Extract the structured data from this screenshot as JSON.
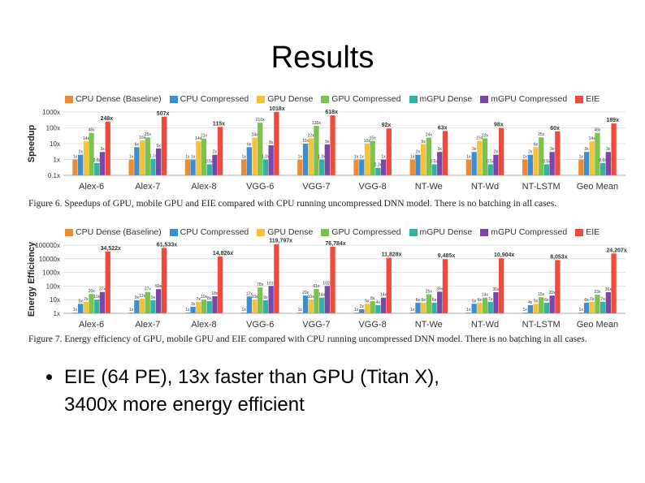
{
  "slide": {
    "title": "Results",
    "bullet": "EIE (64 PE), 13x faster than GPU (Titan X), 3400x more energy efficient",
    "bullet_line1": "EIE (64 PE), 13x faster than GPU (Titan X),",
    "bullet_line2": "3400x more energy efficient"
  },
  "legend": [
    {
      "name": "CPU Dense (Baseline)",
      "color": "#ee8b32"
    },
    {
      "name": "CPU Compressed",
      "color": "#3a8fd1"
    },
    {
      "name": "GPU Dense",
      "color": "#f5c23c"
    },
    {
      "name": "GPU Compressed",
      "color": "#7cc24f"
    },
    {
      "name": "mGPU Dense",
      "color": "#35b0a4"
    },
    {
      "name": "mGPU Compressed",
      "color": "#7b46a8"
    },
    {
      "name": "EIE",
      "color": "#ef4b3d"
    }
  ],
  "captions": {
    "fig6": "Figure 6.    Speedups of GPU, mobile GPU and EIE compared with CPU running uncompressed DNN model. There is no batching in all cases.",
    "fig7": "Figure 7.    Energy efficiency of GPU, mobile GPU and EIE compared with CPU running uncompressed DNN model. There is no batching in all cases."
  },
  "chart_data": [
    {
      "type": "bar",
      "ylabel": "Speedup",
      "yscale": "log",
      "ylim": [
        0.1,
        1000
      ],
      "yticks": [
        "1000x",
        "100x",
        "10x",
        "1x",
        "0.1x"
      ],
      "categories": [
        "Alex-6",
        "Alex-7",
        "Alex-8",
        "VGG-6",
        "VGG-7",
        "VGG-8",
        "NT-We",
        "NT-Wd",
        "NT-LSTM",
        "Geo Mean"
      ],
      "series": [
        {
          "name": "CPU Dense (Baseline)",
          "values": [
            1,
            1,
            1,
            1,
            1,
            1,
            1,
            1,
            1,
            1
          ],
          "labels": [
            "1x",
            "1x",
            "1x",
            "1x",
            "1x",
            "1x",
            "1x",
            "1x",
            "1x",
            "1x"
          ]
        },
        {
          "name": "CPU Compressed",
          "values": [
            2,
            6,
            1,
            6,
            10,
            1,
            2,
            3,
            2,
            3
          ],
          "labels": [
            "2x",
            "6x",
            "1x",
            "6x",
            "10x",
            "1x",
            "2x",
            "3x",
            "2x",
            "3x"
          ]
        },
        {
          "name": "GPU Dense",
          "values": [
            14,
            16,
            14,
            24,
            22,
            10,
            9,
            15,
            6,
            14
          ],
          "labels": [
            "14x",
            "16x",
            "14x",
            "24x",
            "22x",
            "10x",
            "9x",
            "15x",
            "6x",
            "14x"
          ]
        },
        {
          "name": "GPU Compressed",
          "values": [
            48,
            25,
            21,
            210,
            135,
            15,
            24,
            22,
            25,
            48
          ],
          "labels": [
            "48x",
            "25x",
            "21x",
            "210x",
            "135x",
            "15x",
            "24x",
            "22x",
            "25x",
            "48x"
          ]
        },
        {
          "name": "mGPU Dense",
          "values": [
            0.6,
            1.1,
            0.5,
            1.0,
            1.0,
            0.3,
            0.5,
            0.5,
            0.5,
            0.6
          ],
          "labels": [
            "0.6x",
            "1.1x",
            "0.5x",
            "1.0x",
            "1.0x",
            "0.3x",
            "0.5x",
            "0.5x",
            "0.5x",
            "0.6x"
          ]
        },
        {
          "name": "mGPU Compressed",
          "values": [
            3,
            5,
            2,
            8,
            9,
            1,
            3,
            2,
            3,
            3
          ],
          "labels": [
            "3x",
            "5x",
            "2x",
            "8x",
            "9x",
            "1x",
            "3x",
            "2x",
            "3x",
            "3x"
          ]
        },
        {
          "name": "EIE",
          "values": [
            248,
            507,
            115,
            1018,
            618,
            92,
            63,
            98,
            60,
            189
          ],
          "labels": [
            "248x",
            "507x",
            "115x",
            "1018x",
            "618x",
            "92x",
            "63x",
            "98x",
            "60x",
            "189x"
          ]
        }
      ]
    },
    {
      "type": "bar",
      "ylabel": "Energy Efficiency",
      "yscale": "log",
      "ylim": [
        1,
        100000
      ],
      "yticks": [
        "100000x",
        "10000x",
        "1000x",
        "100x",
        "10x",
        "1x"
      ],
      "categories": [
        "Alex-6",
        "Alex-7",
        "Alex-8",
        "VGG-6",
        "VGG-7",
        "VGG-8",
        "NT-We",
        "NT-Wd",
        "NT-LSTM",
        "Geo Mean"
      ],
      "series": [
        {
          "name": "CPU Dense (Baseline)",
          "values": [
            1,
            1,
            1,
            1,
            1,
            1,
            1,
            1,
            1,
            1
          ],
          "labels": [
            "1x",
            "1x",
            "1x",
            "1x",
            "1x",
            "1x",
            "1x",
            "1x",
            "1x",
            "1x"
          ]
        },
        {
          "name": "CPU Compressed",
          "values": [
            5,
            9,
            3,
            17,
            20,
            2,
            6,
            5,
            4,
            6
          ],
          "labels": [
            "5x",
            "9x",
            "3x",
            "17x",
            "20x",
            "2x",
            "6x",
            "5x",
            "4x",
            "6x"
          ]
        },
        {
          "name": "GPU Dense",
          "values": [
            7,
            12,
            7,
            10,
            10,
            5,
            6,
            6,
            5,
            7
          ],
          "labels": [
            "7x",
            "12x",
            "7x",
            "10x",
            "10x",
            "5x",
            "6x",
            "6x",
            "5x",
            "7x"
          ]
        },
        {
          "name": "GPU Compressed",
          "values": [
            26,
            37,
            10,
            78,
            61,
            8,
            25,
            14,
            15,
            23
          ],
          "labels": [
            "26x",
            "37x",
            "10x",
            "78x",
            "61x",
            "8x",
            "25x",
            "14x",
            "15x",
            "23x"
          ]
        },
        {
          "name": "mGPU Dense",
          "values": [
            10,
            9,
            8,
            9,
            14,
            4,
            6,
            7,
            6,
            7
          ],
          "labels": [
            "10x",
            "9x",
            "8x",
            "9x",
            "14x",
            "4x",
            "6x",
            "7x",
            "6x",
            "7x"
          ]
        },
        {
          "name": "mGPU Compressed",
          "values": [
            37,
            59,
            18,
            101,
            102,
            14,
            39,
            36,
            20,
            36
          ],
          "labels": [
            "37x",
            "59x",
            "18x",
            "101x",
            "102x",
            "14x",
            "39x",
            "36x",
            "20x",
            "36x"
          ]
        },
        {
          "name": "EIE",
          "values": [
            34522,
            61533,
            14826,
            119797,
            76784,
            11828,
            9485,
            10904,
            8053,
            24207
          ],
          "labels": [
            "34,522x",
            "61,533x",
            "14,826x",
            "119,797x",
            "76,784x",
            "11,828x",
            "9,485x",
            "10,904x",
            "8,053x",
            "24,207x"
          ]
        }
      ]
    }
  ]
}
